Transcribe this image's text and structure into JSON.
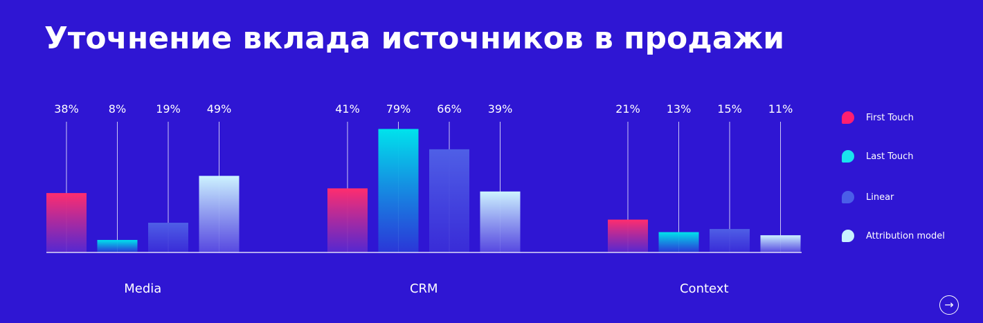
{
  "title": "Уточнение вклада источников в продажи",
  "chart_data": {
    "type": "bar",
    "title": "Уточнение вклада источников в продажи",
    "categories": [
      "Media",
      "CRM",
      "Context"
    ],
    "series": [
      {
        "name": "First Touch",
        "values": [
          38,
          41,
          21
        ],
        "labels": [
          "38%",
          "41%",
          "21%"
        ]
      },
      {
        "name": "Last Touch",
        "values": [
          8,
          79,
          13
        ],
        "labels": [
          "8%",
          "79%",
          "13%"
        ]
      },
      {
        "name": "Linear",
        "values": [
          19,
          66,
          15
        ],
        "labels": [
          "19%",
          "66%",
          "15%"
        ]
      },
      {
        "name": "Attribution model",
        "values": [
          49,
          39,
          11
        ],
        "labels": [
          "49%",
          "39%",
          "11%"
        ]
      }
    ],
    "value_unit": "%",
    "ylim": [
      0,
      80
    ],
    "grid": false,
    "legend_position": "right",
    "colors": {
      "First Touch": [
        "#ff2d6e",
        "#5a2ad0"
      ],
      "Last Touch": [
        "#00e3ec",
        "#2a3ad8"
      ],
      "Linear": [
        "#4f5fe6",
        "#3a2ed8"
      ],
      "Attribution model": [
        "#cdf3ff",
        "#5b4ee2"
      ]
    },
    "marker_colors": {
      "First Touch": "#ff1f6f",
      "Last Touch": "#19e2ee",
      "Linear": "#4a5ee8",
      "Attribution model": "#c8f2ff"
    }
  },
  "legend": [
    {
      "label": "First Touch",
      "color": "#ff1f6f"
    },
    {
      "label": "Last Touch",
      "color": "#19e2ee"
    },
    {
      "label": "Linear",
      "color": "#4a5ee8"
    },
    {
      "label": "Attribution model",
      "color": "#c8f2ff"
    }
  ],
  "nav": {
    "next_icon": "→"
  }
}
